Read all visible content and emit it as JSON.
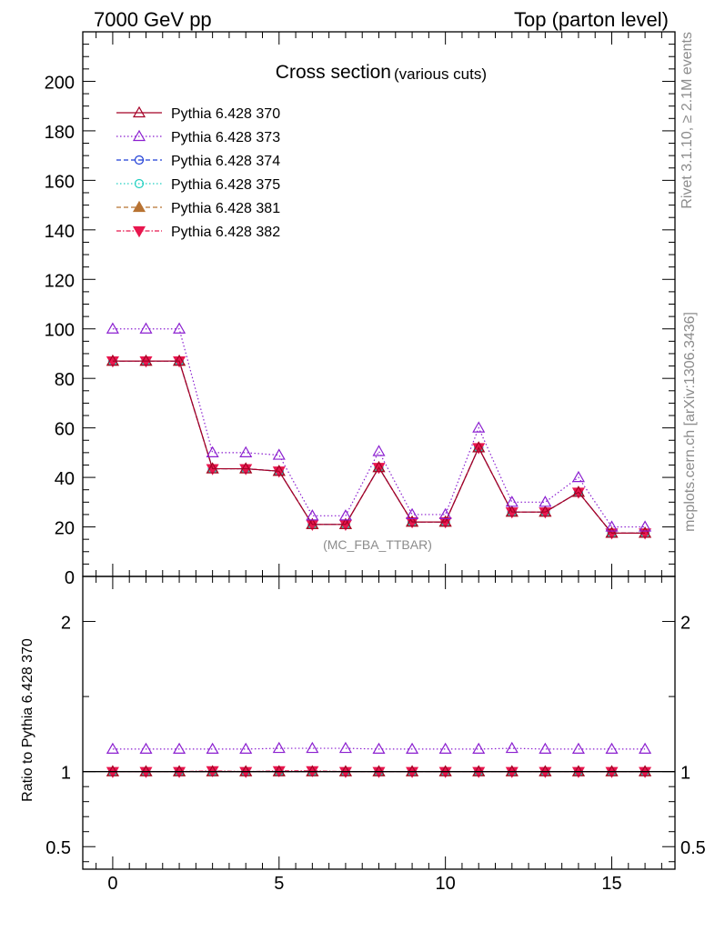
{
  "header": {
    "left": "7000 GeV pp",
    "right": "Top (parton level)"
  },
  "side_labels": {
    "rivet": "Rivet 3.1.10, ≥ 2.1M events",
    "mcplots": "mcplots.cern.ch [arXiv:1306.3436]"
  },
  "chart_data": [
    {
      "type": "line",
      "title": "Cross section",
      "subtitle": "(various cuts)",
      "analysis_tag": "(MC_FBA_TTBAR)",
      "xlim": [
        -0.9,
        16.9
      ],
      "ylim": [
        0,
        220
      ],
      "yticks": [
        0,
        20,
        40,
        60,
        80,
        100,
        120,
        140,
        160,
        180,
        200
      ],
      "ytick_labels": [
        "0",
        "20",
        "40",
        "60",
        "80",
        "100",
        "120",
        "140",
        "160",
        "180",
        "200"
      ],
      "x": [
        0,
        1,
        2,
        3,
        4,
        5,
        6,
        7,
        8,
        9,
        10,
        11,
        12,
        13,
        14,
        15,
        16
      ],
      "legend_position": "top-left",
      "series": [
        {
          "name": "Pythia 6.428 370",
          "color": "#a50026",
          "dash": "",
          "marker": "triangle-open",
          "values": [
            87,
            87,
            87,
            43.5,
            43.5,
            42.5,
            21,
            21,
            44,
            22,
            22,
            52,
            26,
            26,
            34,
            17.5,
            17.5
          ]
        },
        {
          "name": "Pythia 6.428 373",
          "color": "#8b1fd0",
          "dash": "1.5,2.5",
          "marker": "triangle-open",
          "values": [
            100,
            100,
            100,
            50,
            50,
            49,
            24.5,
            24.5,
            50.5,
            25,
            25,
            60,
            30,
            30,
            40,
            20,
            20
          ]
        },
        {
          "name": "Pythia 6.428 374",
          "color": "#1f3ed6",
          "dash": "5,3",
          "marker": "circle-open",
          "values": [
            87,
            87,
            87,
            43.5,
            43.5,
            42.5,
            21,
            21,
            44,
            22,
            22,
            52,
            26,
            26,
            34,
            17.5,
            17.5
          ]
        },
        {
          "name": "Pythia 6.428 375",
          "color": "#20cfc0",
          "dash": "1.5,2.5",
          "marker": "circle-open",
          "values": [
            87,
            87,
            87,
            43.5,
            43.5,
            42.5,
            21,
            21,
            44,
            22,
            22,
            52,
            26,
            26,
            34,
            17.5,
            17.5
          ]
        },
        {
          "name": "Pythia 6.428 381",
          "color": "#b87333",
          "dash": "5,3",
          "marker": "triangle-filled",
          "values": [
            87,
            87,
            87,
            43.5,
            43.5,
            42.5,
            21,
            21,
            44,
            22,
            22,
            52,
            26,
            26,
            34,
            17.5,
            17.5
          ]
        },
        {
          "name": "Pythia 6.428 382",
          "color": "#e8174e",
          "dash": "5,2,1.5,2",
          "marker": "triangle-down-filled",
          "values": [
            87,
            87,
            87,
            43.5,
            43.5,
            42.5,
            21,
            21,
            44,
            22,
            22,
            52,
            26,
            26,
            34,
            17.5,
            17.5
          ]
        }
      ]
    },
    {
      "type": "line",
      "ylabel": "Ratio to Pythia 6.428 370",
      "xlim": [
        -0.9,
        16.9
      ],
      "ylim": [
        0.35,
        2.3
      ],
      "yticks": [
        0.5,
        1,
        2
      ],
      "ytick_labels": [
        "0.5",
        "1",
        "2"
      ],
      "xticks": [
        0,
        5,
        10,
        15
      ],
      "xtick_labels": [
        "0",
        "5",
        "10",
        "15"
      ],
      "x": [
        0,
        1,
        2,
        3,
        4,
        5,
        6,
        7,
        8,
        9,
        10,
        11,
        12,
        13,
        14,
        15,
        16
      ],
      "reference_line": 1,
      "series": [
        {
          "name": "Pythia 6.428 370",
          "values": [
            1,
            1,
            1,
            1,
            1,
            1,
            1,
            1,
            1,
            1,
            1,
            1,
            1,
            1,
            1,
            1,
            1
          ]
        },
        {
          "name": "Pythia 6.428 373",
          "values": [
            1.15,
            1.15,
            1.15,
            1.15,
            1.15,
            1.155,
            1.155,
            1.155,
            1.15,
            1.15,
            1.15,
            1.15,
            1.155,
            1.15,
            1.15,
            1.15,
            1.15
          ]
        },
        {
          "name": "Pythia 6.428 374",
          "values": [
            1,
            1,
            1,
            1,
            1,
            1,
            1,
            1,
            1,
            1,
            1,
            1,
            1,
            1,
            1,
            1,
            1
          ]
        },
        {
          "name": "Pythia 6.428 375",
          "values": [
            1,
            1,
            1,
            1,
            1,
            1,
            1,
            1,
            1,
            1,
            1,
            1,
            1,
            1,
            1,
            1,
            1
          ]
        },
        {
          "name": "Pythia 6.428 381",
          "values": [
            1,
            1,
            1,
            1,
            1,
            1,
            1,
            1,
            1,
            1,
            1,
            1,
            1,
            1,
            1,
            1,
            1
          ]
        },
        {
          "name": "Pythia 6.428 382",
          "values": [
            1,
            1,
            1,
            1.005,
            1,
            1.005,
            1.005,
            1,
            1,
            1,
            1,
            1,
            1,
            1,
            1,
            1,
            1
          ]
        }
      ]
    }
  ]
}
